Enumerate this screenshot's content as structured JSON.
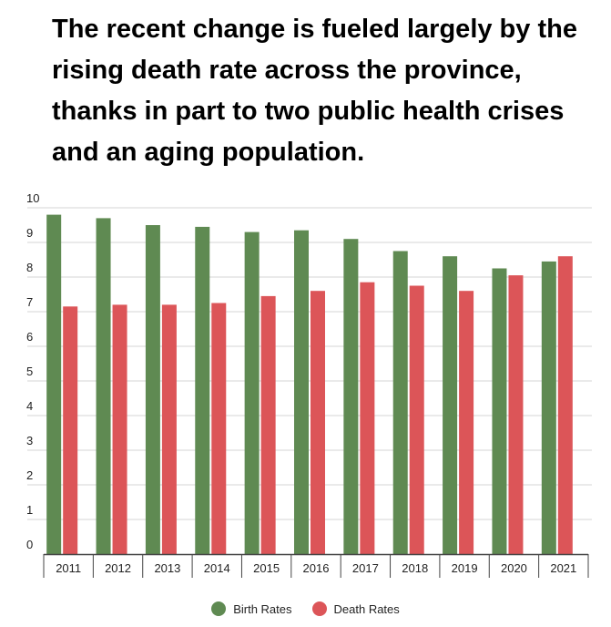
{
  "headline": "The recent change is fueled largely by the rising death rate across the province, thanks in part to two public health crises and an aging population.",
  "colors": {
    "birth": "#5f8a52",
    "death": "#dc5558",
    "grid": "#d6d6d6",
    "axis": "#444444"
  },
  "chart_data": {
    "type": "bar",
    "title": "",
    "xlabel": "",
    "ylabel": "",
    "ylim": [
      0,
      10
    ],
    "yticks": [
      0,
      1,
      2,
      3,
      4,
      5,
      6,
      7,
      8,
      9,
      10
    ],
    "grid": true,
    "legend_position": "bottom-center",
    "categories": [
      "2011",
      "2012",
      "2013",
      "2014",
      "2015",
      "2016",
      "2017",
      "2018",
      "2019",
      "2020",
      "2021"
    ],
    "series": [
      {
        "name": "Birth Rates",
        "color": "#5f8a52",
        "values": [
          9.8,
          9.7,
          9.5,
          9.45,
          9.3,
          9.35,
          9.1,
          8.75,
          8.6,
          8.25,
          8.45
        ]
      },
      {
        "name": "Death Rates",
        "color": "#dc5558",
        "values": [
          7.15,
          7.2,
          7.2,
          7.25,
          7.45,
          7.6,
          7.85,
          7.75,
          7.6,
          8.05,
          8.6
        ]
      }
    ]
  }
}
